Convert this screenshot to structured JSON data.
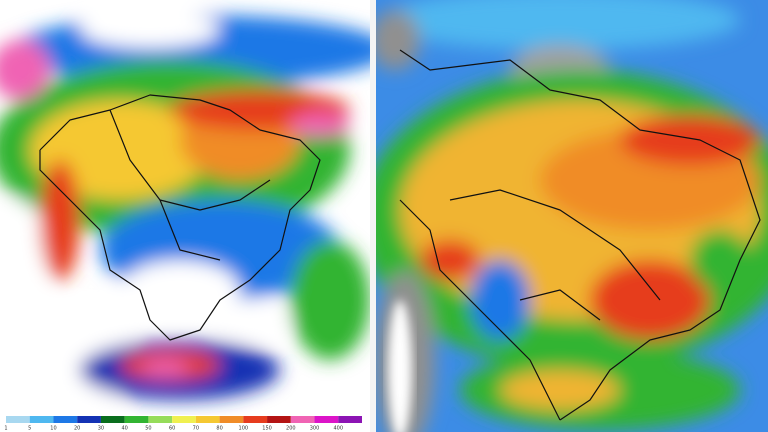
{
  "legend": {
    "items": [
      {
        "label": "1",
        "color": "#a8d8f0"
      },
      {
        "label": "5",
        "color": "#4fb8f0"
      },
      {
        "label": "10",
        "color": "#1e78e6"
      },
      {
        "label": "20",
        "color": "#1432b4"
      },
      {
        "label": "30",
        "color": "#0a6e1e"
      },
      {
        "label": "40",
        "color": "#32b432"
      },
      {
        "label": "50",
        "color": "#96dc5a"
      },
      {
        "label": "60",
        "color": "#f0f050"
      },
      {
        "label": "70",
        "color": "#f5c832"
      },
      {
        "label": "80",
        "color": "#f08c28"
      },
      {
        "label": "100",
        "color": "#e63c1e"
      },
      {
        "label": "150",
        "color": "#b41414"
      },
      {
        "label": "200",
        "color": "#f064b4"
      },
      {
        "label": "300",
        "color": "#dc14c8"
      },
      {
        "label": "400",
        "color": "#8c14b4"
      }
    ]
  }
}
